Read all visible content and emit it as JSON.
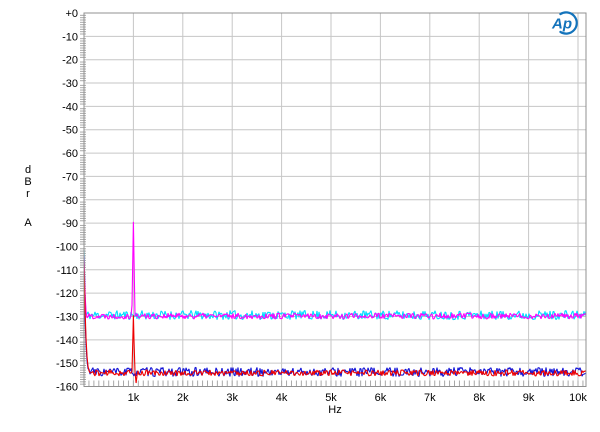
{
  "page": {
    "background": "#ffffff"
  },
  "logo": {
    "text": "Ap",
    "color": "#1373BB"
  },
  "chart_data": {
    "type": "line",
    "title": "",
    "xlabel": "Hz",
    "ylabel_stack": [
      "d",
      "B",
      "r"
    ],
    "ylabel_suffix": "A",
    "xlim_hz": [
      0,
      10162
    ],
    "ylim_db": [
      -160,
      0
    ],
    "grid": true,
    "legend": "none",
    "grid_color": "#c6c6c6",
    "border_color": "#909090",
    "minor_tick_color": "#a8a8a8",
    "label_color": "#000000",
    "x_minor_step_hz": 100,
    "y_minor_step_db": 1,
    "x_major_ticks": [
      {
        "hz": 1000,
        "label": "1k"
      },
      {
        "hz": 2000,
        "label": "2k"
      },
      {
        "hz": 3000,
        "label": "3k"
      },
      {
        "hz": 4000,
        "label": "4k"
      },
      {
        "hz": 5000,
        "label": "5k"
      },
      {
        "hz": 6000,
        "label": "6k"
      },
      {
        "hz": 7000,
        "label": "7k"
      },
      {
        "hz": 8000,
        "label": "8k"
      },
      {
        "hz": 9000,
        "label": "9k"
      },
      {
        "hz": 10000,
        "label": "10k"
      }
    ],
    "y_major_ticks": [
      {
        "db": 0,
        "label": "+0"
      },
      {
        "db": -10,
        "label": "-10"
      },
      {
        "db": -20,
        "label": "-20"
      },
      {
        "db": -30,
        "label": "-30"
      },
      {
        "db": -40,
        "label": "-40"
      },
      {
        "db": -50,
        "label": "-50"
      },
      {
        "db": -60,
        "label": "-60"
      },
      {
        "db": -70,
        "label": "-70"
      },
      {
        "db": -80,
        "label": "-80"
      },
      {
        "db": -90,
        "label": "-90"
      },
      {
        "db": -100,
        "label": "-100"
      },
      {
        "db": -110,
        "label": "-110"
      },
      {
        "db": -120,
        "label": "-120"
      },
      {
        "db": -130,
        "label": "-130"
      },
      {
        "db": -140,
        "label": "-140"
      },
      {
        "db": -150,
        "label": "-150"
      },
      {
        "db": -160,
        "label": "-160"
      }
    ],
    "series": [
      {
        "name": "noise-floor-cyan",
        "color": "#00dcff",
        "floor_db": -129.4,
        "noise_pp_db": 4.0,
        "seed": 11,
        "features": [
          {
            "hz": 0,
            "peak_db": -101.5,
            "width_hz": 45,
            "sharp": 2
          }
        ]
      },
      {
        "name": "noise-floor-magenta",
        "color": "#ff00ff",
        "floor_db": -129.8,
        "noise_pp_db": 2.6,
        "seed": 22,
        "features": [
          {
            "hz": 1000,
            "peak_db": -89.5,
            "width_hz": 32,
            "sharp": 1
          },
          {
            "hz": 0,
            "peak_db": -104,
            "width_hz": 55,
            "sharp": 2
          }
        ]
      },
      {
        "name": "noise-floor-blue",
        "color": "#1212d6",
        "floor_db": -153.8,
        "noise_pp_db": 4.0,
        "seed": 33,
        "features": [
          {
            "hz": 0,
            "peak_db": -112,
            "width_hz": 120,
            "sharp": 3
          }
        ]
      },
      {
        "name": "noise-floor-red",
        "color": "#ee0000",
        "floor_db": -154.2,
        "noise_pp_db": 2.6,
        "seed": 44,
        "features": [
          {
            "hz": 1000,
            "peak_db": -129.5,
            "width_hz": 28,
            "sharp": 1
          },
          {
            "hz": 1055,
            "peak_db": -158.5,
            "width_hz": 22,
            "sharp": 1
          },
          {
            "hz": 0,
            "peak_db": -106,
            "width_hz": 160,
            "sharp": 4
          }
        ]
      }
    ]
  }
}
